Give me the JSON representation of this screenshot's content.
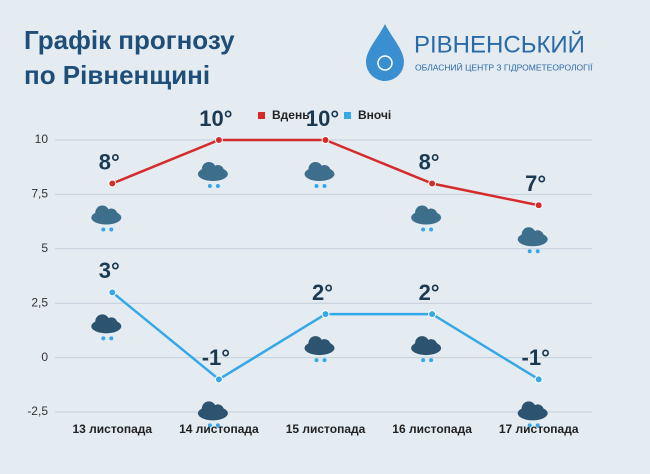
{
  "header": {
    "logo_name": "РІВНЕНСЬКИЙ",
    "logo_subtitle": "ОБЛАСНИЙ ЦЕНТР З ГІДРОМЕТЕОРОЛОГІЇ"
  },
  "chart_data": {
    "type": "line",
    "title": [
      "Графік прогнозу",
      "по Рівненщині"
    ],
    "categories": [
      "13 листопада",
      "14 листопада",
      "15 листопада",
      "16 листопада",
      "17 листопада"
    ],
    "series": [
      {
        "name": "Вдень",
        "color": "#d62b2b",
        "values": [
          8,
          10,
          10,
          8,
          7
        ],
        "value_labels": [
          "8°",
          "10°",
          "10°",
          "8°",
          "7°"
        ]
      },
      {
        "name": "Вночі",
        "color": "#35a8e8",
        "values": [
          3,
          -1,
          2,
          2,
          -1
        ],
        "value_labels": [
          "3°",
          "-1°",
          "2°",
          "2°",
          "-1°"
        ]
      }
    ],
    "ylim": [
      -2.5,
      10
    ],
    "yticks": [
      {
        "value": -2.5,
        "label": "-2,5"
      },
      0,
      {
        "value": 2.5,
        "label": "2,5"
      },
      5,
      {
        "value": 7.5,
        "label": "7,5"
      },
      10
    ],
    "grid": true,
    "legend": "top"
  }
}
